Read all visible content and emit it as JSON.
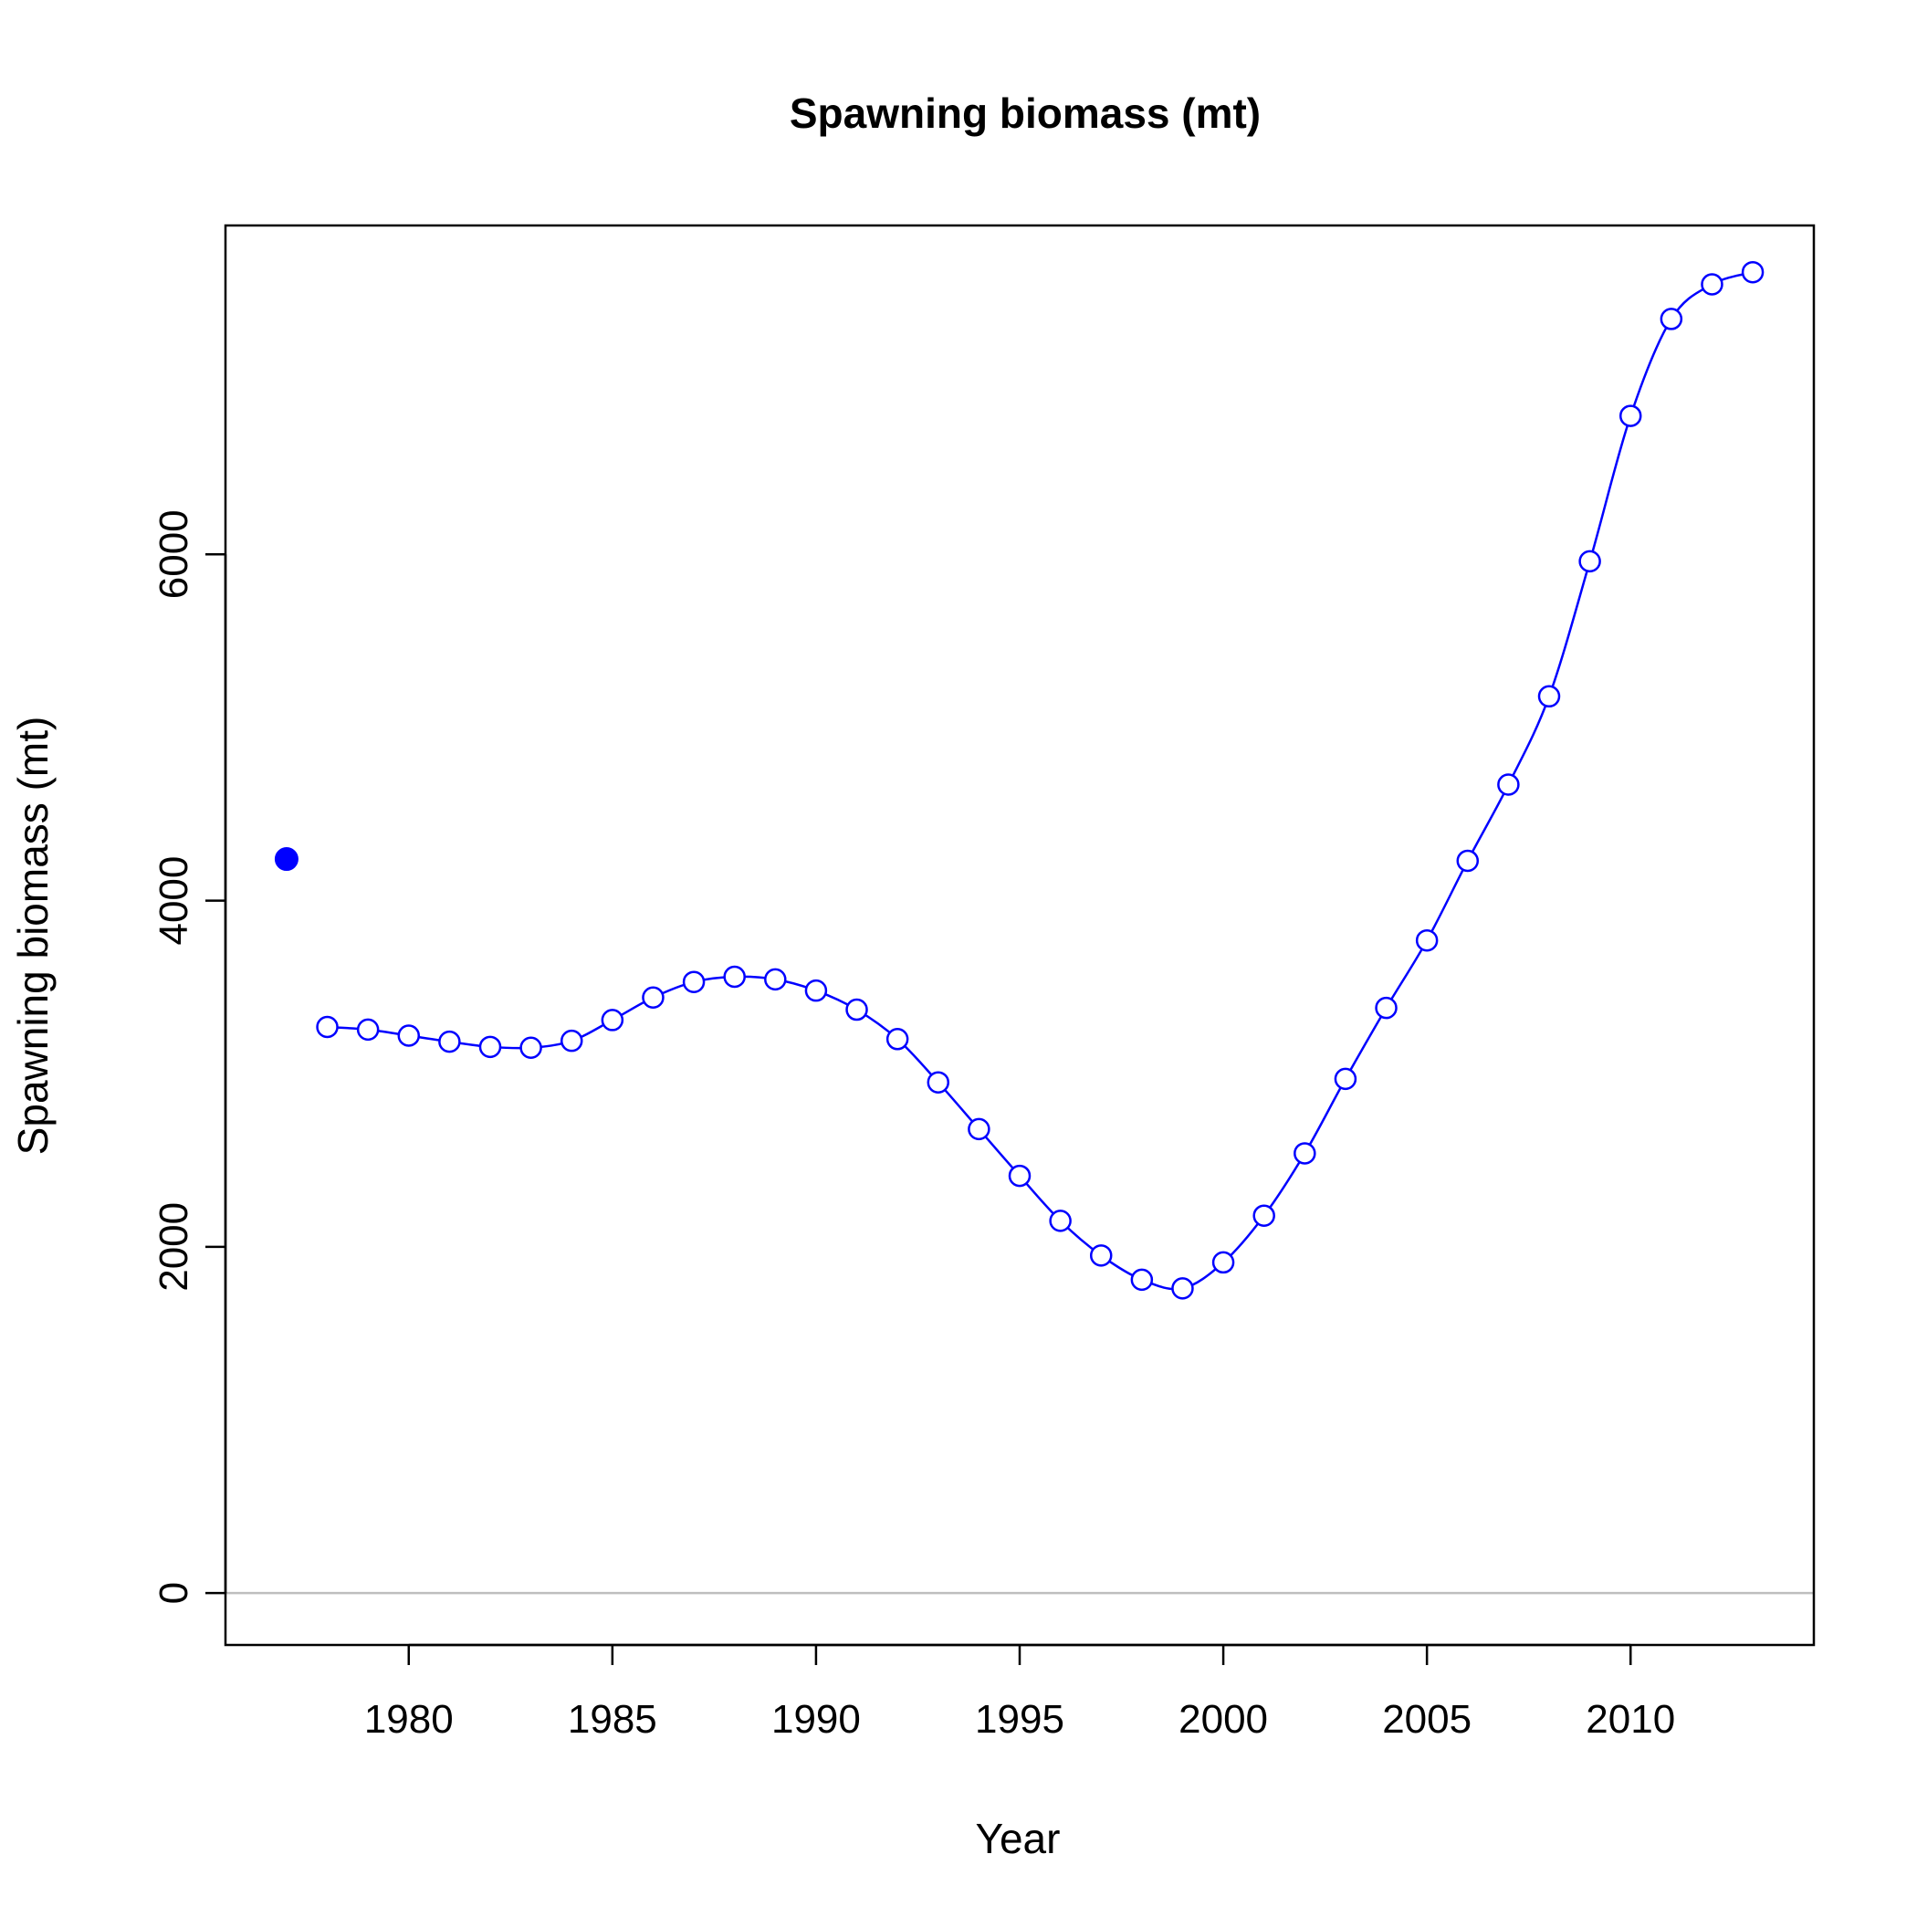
{
  "chart_data": {
    "type": "line",
    "title": "Spawning biomass (mt)",
    "xlabel": "Year",
    "ylabel": "Spawning biomass (mt)",
    "xlim": [
      1975.5,
      2014.5
    ],
    "ylim": [
      -300,
      7900
    ],
    "xticks": [
      1980,
      1985,
      1990,
      1995,
      2000,
      2005,
      2010
    ],
    "xtick_labels": [
      "1980",
      "1985",
      "1990",
      "1995",
      "2000",
      "2005",
      "2010"
    ],
    "yticks": [
      0,
      2000,
      4000,
      6000
    ],
    "ytick_labels": [
      "0",
      "2000",
      "4000",
      "6000"
    ],
    "reference_line": {
      "y": 0,
      "color": "#bebebe"
    },
    "grid": false,
    "legend": "none",
    "series": [
      {
        "color": "#0000ff",
        "marker": "open-circle",
        "x": [
          1978,
          1979,
          1980,
          1981,
          1982,
          1983,
          1984,
          1985,
          1986,
          1987,
          1988,
          1989,
          1990,
          1991,
          1992,
          1993,
          1994,
          1995,
          1996,
          1997,
          1998,
          1999,
          2000,
          2001,
          2002,
          2003,
          2004,
          2005,
          2006,
          2007,
          2008,
          2009,
          2010,
          2011,
          2012,
          2013
        ],
        "values": [
          3270,
          3255,
          3220,
          3185,
          3155,
          3150,
          3190,
          3310,
          3440,
          3530,
          3560,
          3545,
          3480,
          3370,
          3200,
          2950,
          2680,
          2410,
          2150,
          1950,
          1810,
          1760,
          1910,
          2180,
          2540,
          2970,
          3380,
          3770,
          4230,
          4670,
          5180,
          5960,
          6800,
          7360,
          7560,
          7630
        ]
      },
      {
        "color": "#0000ff",
        "marker": "filled-circle",
        "x": [
          1977
        ],
        "values": [
          4240
        ]
      }
    ]
  }
}
